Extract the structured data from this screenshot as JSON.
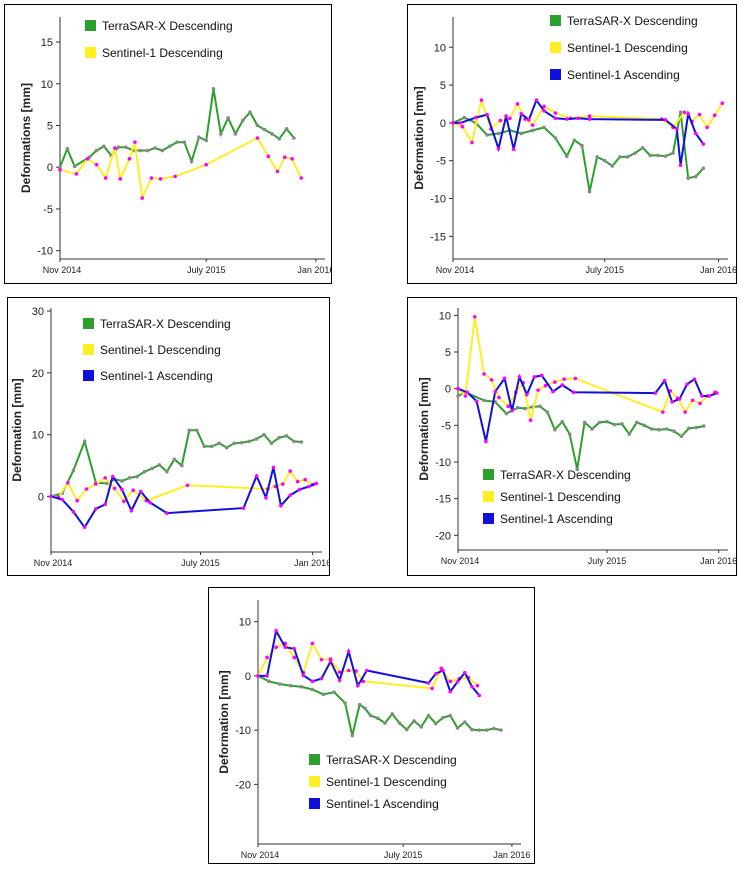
{
  "colors": {
    "terrasar": "#2ca02c",
    "s1_desc": "#ffee22",
    "s1_asc": "#1010dd",
    "marker": "#ff00ff",
    "marker_green": "#888888"
  },
  "chart_data": [
    {
      "type": "line",
      "ylabel": "Deformations [mm]",
      "yticks": [
        15,
        10,
        5,
        0,
        -5,
        -10
      ],
      "xtick_labels": [
        "Nov 2014",
        "July 2015",
        "Jan 2016"
      ],
      "xticks_at": [
        0,
        8,
        14
      ],
      "xlim": [
        0,
        14.5
      ],
      "ylim": [
        -11,
        18
      ],
      "legend": "top-left",
      "series": [
        {
          "name": "TerraSAR-X Descending",
          "color": "terrasar",
          "x": [
            0,
            0.4,
            0.8,
            1.6,
            2.0,
            2.4,
            2.8,
            3.2,
            3.6,
            4.0,
            4.4,
            4.8,
            5.2,
            5.6,
            6.0,
            6.4,
            6.8,
            7.2,
            7.6,
            8.0,
            8.4,
            8.8,
            9.2,
            9.6,
            10.0,
            10.4,
            10.8,
            11.2,
            11.6,
            12.0,
            12.4,
            12.8
          ],
          "y": [
            0,
            2.2,
            0.1,
            1.2,
            2,
            2.5,
            1.4,
            2.4,
            2.4,
            2,
            2,
            2,
            2.3,
            2,
            2.5,
            3,
            3,
            0.7,
            3.6,
            3.2,
            9.4,
            4,
            5.9,
            4,
            5.6,
            6.6,
            5,
            4.5,
            4,
            3.4,
            4.6,
            3.5
          ]
        },
        {
          "name": "Sentinel-1 Descending",
          "color": "s1_desc",
          "x": [
            0,
            0.9,
            1.5,
            2.0,
            2.5,
            3.0,
            3.3,
            3.8,
            4.1,
            4.5,
            5.0,
            5.5,
            6.3,
            8.0,
            10.8,
            11.4,
            11.9,
            12.3,
            12.7,
            13.2
          ],
          "y": [
            -0.3,
            -0.8,
            1,
            0.3,
            -1.3,
            2.3,
            -1.4,
            1,
            3,
            -3.7,
            -1.3,
            -1.4,
            -1.1,
            0.3,
            3.5,
            1.3,
            -0.5,
            1.2,
            1,
            -1.3
          ]
        }
      ]
    },
    {
      "type": "line",
      "ylabel": "Deformation [mm]",
      "yticks": [
        10,
        5,
        0,
        -5,
        -10,
        -15
      ],
      "xtick_labels": [
        "Nov 2014",
        "July 2015",
        "Jan 2016"
      ],
      "xticks_at": [
        0,
        8,
        14
      ],
      "xlim": [
        0,
        14.5
      ],
      "ylim": [
        -18,
        14
      ],
      "legend": "top-right",
      "series": [
        {
          "name": "TerraSAR-X Descending",
          "color": "terrasar",
          "x": [
            0,
            0.6,
            1.2,
            1.8,
            2.4,
            3.0,
            3.6,
            4.2,
            4.8,
            5.4,
            6.0,
            6.4,
            6.8,
            7.2,
            7.6,
            8.0,
            8.4,
            8.8,
            9.2,
            9.6,
            10.0,
            10.4,
            10.8,
            11.2,
            11.6,
            12.0,
            12.4,
            12.8,
            13.2
          ],
          "y": [
            0,
            0.7,
            0,
            -1.6,
            -1.4,
            -1,
            -1.4,
            -1,
            -0.6,
            -2,
            -4.4,
            -2.3,
            -3,
            -9.1,
            -4.5,
            -5,
            -5.7,
            -4.5,
            -4.5,
            -4,
            -3.3,
            -4.3,
            -4.3,
            -4.4,
            -4,
            1.4,
            -7.3,
            -7.1,
            -6
          ]
        },
        {
          "name": "Sentinel-1 Descending",
          "color": "s1_desc",
          "x": [
            0,
            0.5,
            1.0,
            1.5,
            2.0,
            2.5,
            3.0,
            3.4,
            3.8,
            4.2,
            4.8,
            5.4,
            6.2,
            7.2,
            11.0,
            11.6,
            12.2,
            12.6,
            13.0,
            13.4,
            13.8,
            14.2
          ],
          "y": [
            0,
            -0.5,
            -2.6,
            3,
            -0.8,
            0.3,
            0.6,
            2.5,
            0.5,
            -0.3,
            2.2,
            1.3,
            0.6,
            0.9,
            0.5,
            -0.6,
            1.4,
            0.2,
            1.1,
            -0.6,
            1,
            2.6
          ]
        },
        {
          "name": "Sentinel-1 Ascending",
          "color": "s1_asc",
          "x": [
            0,
            0.4,
            1.2,
            1.8,
            2.4,
            2.8,
            3.2,
            3.6,
            4.0,
            4.4,
            4.8,
            5.4,
            6.0,
            6.6,
            7.2,
            11.2,
            11.8,
            12.0,
            12.4,
            12.8,
            13.2
          ],
          "y": [
            0,
            0,
            0.7,
            1.1,
            -3.4,
            0.9,
            -3.5,
            1.2,
            0.4,
            3,
            1.6,
            0.6,
            0.5,
            0.6,
            0.5,
            0.4,
            -0.8,
            -5.6,
            1.2,
            -1.4,
            -2.8
          ]
        }
      ]
    },
    {
      "type": "line",
      "ylabel": "Deformation [mm]",
      "yticks": [
        30,
        20,
        10,
        0
      ],
      "xtick_labels": [
        "Nov 2014",
        "July 2015",
        "Jan 2016"
      ],
      "xticks_at": [
        0,
        8,
        14
      ],
      "xlim": [
        0,
        14.5
      ],
      "ylim": [
        -9,
        30.5
      ],
      "legend": "top-left",
      "series": [
        {
          "name": "TerraSAR-X Descending",
          "color": "terrasar",
          "x": [
            0,
            0.6,
            1.2,
            1.8,
            2.4,
            3.0,
            3.4,
            3.8,
            4.2,
            4.6,
            5.0,
            5.4,
            5.8,
            6.2,
            6.6,
            7.0,
            7.4,
            7.8,
            8.2,
            8.6,
            9.0,
            9.4,
            9.8,
            10.2,
            10.6,
            11.0,
            11.4,
            11.8,
            12.2,
            12.6,
            13.0,
            13.4
          ],
          "y": [
            0,
            0.5,
            4.2,
            8.9,
            2.2,
            2.1,
            2.8,
            2.5,
            3,
            3.2,
            4,
            4.5,
            5.1,
            4,
            6,
            5,
            10.7,
            10.7,
            8.1,
            8.1,
            8.6,
            7.9,
            8.6,
            8.7,
            8.9,
            9.3,
            10,
            8.6,
            9.5,
            9.8,
            8.9,
            8.8
          ]
        },
        {
          "name": "Sentinel-1 Descending",
          "color": "s1_desc",
          "x": [
            0,
            0.4,
            0.9,
            1.4,
            1.9,
            2.4,
            2.9,
            3.4,
            3.9,
            4.4,
            5.1,
            7.3,
            11.6,
            12.0,
            12.4,
            12.8,
            13.2,
            13.6,
            14.0
          ],
          "y": [
            0,
            -0.1,
            2.2,
            -0.7,
            1.2,
            2,
            3,
            1.3,
            -0.8,
            1,
            -0.7,
            1.8,
            1.2,
            1.6,
            2,
            4.1,
            2.4,
            2.7,
            1.9
          ]
        },
        {
          "name": "Sentinel-1 Ascending",
          "color": "s1_asc",
          "x": [
            0,
            0.6,
            1.2,
            1.8,
            2.4,
            2.9,
            3.3,
            3.8,
            4.3,
            4.8,
            5.3,
            6.2,
            10.3,
            11.0,
            11.5,
            11.9,
            12.3,
            12.8,
            13.3,
            13.8,
            14.2
          ],
          "y": [
            0,
            -0.5,
            -2.5,
            -5,
            -2,
            -1.3,
            3.2,
            1.1,
            -2.3,
            0.8,
            -1,
            -2.7,
            -1.9,
            3.3,
            -0.2,
            4.7,
            -1.5,
            0.2,
            1.1,
            1.6,
            2.1
          ]
        }
      ]
    },
    {
      "type": "line",
      "ylabel": "Deformation [mm]",
      "yticks": [
        10,
        5,
        0,
        -5,
        -10,
        -15,
        -20
      ],
      "xtick_labels": [
        "Nov 2014",
        "July 2015",
        "Jan 2016"
      ],
      "xticks_at": [
        0,
        8,
        14
      ],
      "xlim": [
        0,
        14.5
      ],
      "ylim": [
        -22,
        11
      ],
      "legend": "bottom-left",
      "series": [
        {
          "name": "TerraSAR-X Descending",
          "color": "terrasar",
          "x": [
            0,
            0.4,
            1.4,
            2.0,
            2.6,
            3.2,
            3.6,
            4.0,
            4.4,
            4.8,
            5.2,
            5.6,
            6.0,
            6.4,
            6.8,
            7.2,
            7.6,
            8.0,
            8.4,
            8.8,
            9.2,
            9.6,
            10.0,
            10.4,
            10.8,
            11.2,
            11.6,
            12.0,
            12.4,
            12.8,
            13.2
          ],
          "y": [
            -1,
            -0.5,
            -1.6,
            -1.8,
            -3.4,
            -2.6,
            -2.7,
            -2.5,
            -2.4,
            -3.2,
            -5.6,
            -4.5,
            -6.2,
            -11,
            -4.6,
            -5.5,
            -4.6,
            -4.5,
            -4.9,
            -4.8,
            -6.2,
            -4.6,
            -5,
            -5.5,
            -5.6,
            -5.5,
            -5.8,
            -6.5,
            -5.4,
            -5.3,
            -5.1
          ]
        },
        {
          "name": "Sentinel-1 Descending",
          "color": "s1_desc",
          "x": [
            0,
            0.4,
            0.9,
            1.4,
            1.8,
            2.2,
            2.7,
            3.1,
            3.5,
            3.9,
            4.3,
            4.7,
            5.2,
            5.7,
            6.3,
            11.0,
            11.4,
            11.8,
            12.2,
            12.6,
            13.0,
            13.4,
            13.8
          ],
          "y": [
            0,
            -1,
            9.8,
            2,
            1.2,
            -1.2,
            -2.4,
            -0.5,
            0.8,
            -4.3,
            -0.2,
            0.4,
            0.9,
            1.3,
            1.4,
            -3.2,
            -0.3,
            -1.3,
            -3.2,
            -1.6,
            -2,
            -1,
            -0.5
          ]
        },
        {
          "name": "Sentinel-1 Ascending",
          "color": "s1_asc",
          "x": [
            0,
            0.5,
            1.0,
            1.5,
            2.0,
            2.5,
            2.9,
            3.3,
            3.7,
            4.1,
            4.5,
            5.1,
            5.6,
            6.2,
            10.6,
            11.1,
            11.5,
            11.9,
            12.3,
            12.7,
            13.1,
            13.5,
            13.9
          ],
          "y": [
            0,
            -0.5,
            -1.7,
            -7.2,
            -0.4,
            1.4,
            -3,
            1.6,
            -0.8,
            1.6,
            1.8,
            -0.4,
            0.5,
            -0.5,
            -0.6,
            1.1,
            -1.8,
            -1.4,
            0.6,
            1.3,
            -1,
            -1,
            -0.6
          ]
        }
      ]
    },
    {
      "type": "line",
      "ylabel": "Deformation [mm]",
      "yticks": [
        10,
        0,
        -10,
        -20
      ],
      "xtick_labels": [
        "Nov 2014",
        "July 2015",
        "Jan 2016"
      ],
      "xticks_at": [
        0,
        8,
        14
      ],
      "xlim": [
        0,
        14.5
      ],
      "ylim": [
        -31,
        14
      ],
      "legend": "bottom-left",
      "series": [
        {
          "name": "TerraSAR-X Descending",
          "color": "terrasar",
          "x": [
            0,
            0.6,
            1.2,
            1.8,
            2.4,
            3.0,
            3.6,
            4.2,
            4.8,
            5.2,
            5.6,
            5.9,
            6.2,
            6.6,
            7.0,
            7.4,
            7.8,
            8.2,
            8.6,
            9.0,
            9.4,
            9.8,
            10.2,
            10.6,
            11.0,
            11.4,
            11.8,
            12.2,
            12.6,
            13.0,
            13.4
          ],
          "y": [
            0,
            -1,
            -1.5,
            -1.8,
            -2,
            -2.5,
            -3.4,
            -3,
            -5,
            -11,
            -5.3,
            -6,
            -7.3,
            -7.8,
            -8.7,
            -7,
            -8.7,
            -9.9,
            -8.3,
            -9.4,
            -7.3,
            -8.8,
            -7.7,
            -7.3,
            -9.6,
            -8.5,
            -9.9,
            -10,
            -10,
            -9.7,
            -10
          ]
        },
        {
          "name": "Sentinel-1 Descending",
          "color": "s1_desc",
          "x": [
            0,
            0.5,
            1.0,
            1.5,
            2.0,
            2.5,
            3.0,
            3.5,
            4.0,
            4.5,
            5.0,
            5.4,
            5.8,
            9.6,
            10.1,
            10.6,
            11.1,
            11.6,
            12.1
          ],
          "y": [
            0,
            3.4,
            5.3,
            6,
            3.4,
            0.6,
            6,
            3,
            3.1,
            0.7,
            1,
            0.9,
            -1,
            -2.3,
            1.4,
            -1,
            -0.5,
            -0.3,
            -1.8
          ]
        },
        {
          "name": "Sentinel-1 Ascending",
          "color": "s1_asc",
          "x": [
            0,
            0.5,
            1.0,
            1.5,
            2.0,
            2.5,
            3.0,
            3.5,
            4.0,
            4.5,
            5.0,
            5.5,
            6.0,
            9.4,
            9.8,
            10.2,
            10.6,
            11.0,
            11.4,
            11.8,
            12.2
          ],
          "y": [
            0,
            0,
            8.3,
            5.3,
            5,
            0.1,
            -1,
            -0.5,
            2.7,
            -0.8,
            4.5,
            -1.8,
            1,
            -1.3,
            0.4,
            1,
            -2.9,
            -1.1,
            0.6,
            -2,
            -3.6
          ]
        }
      ]
    }
  ]
}
